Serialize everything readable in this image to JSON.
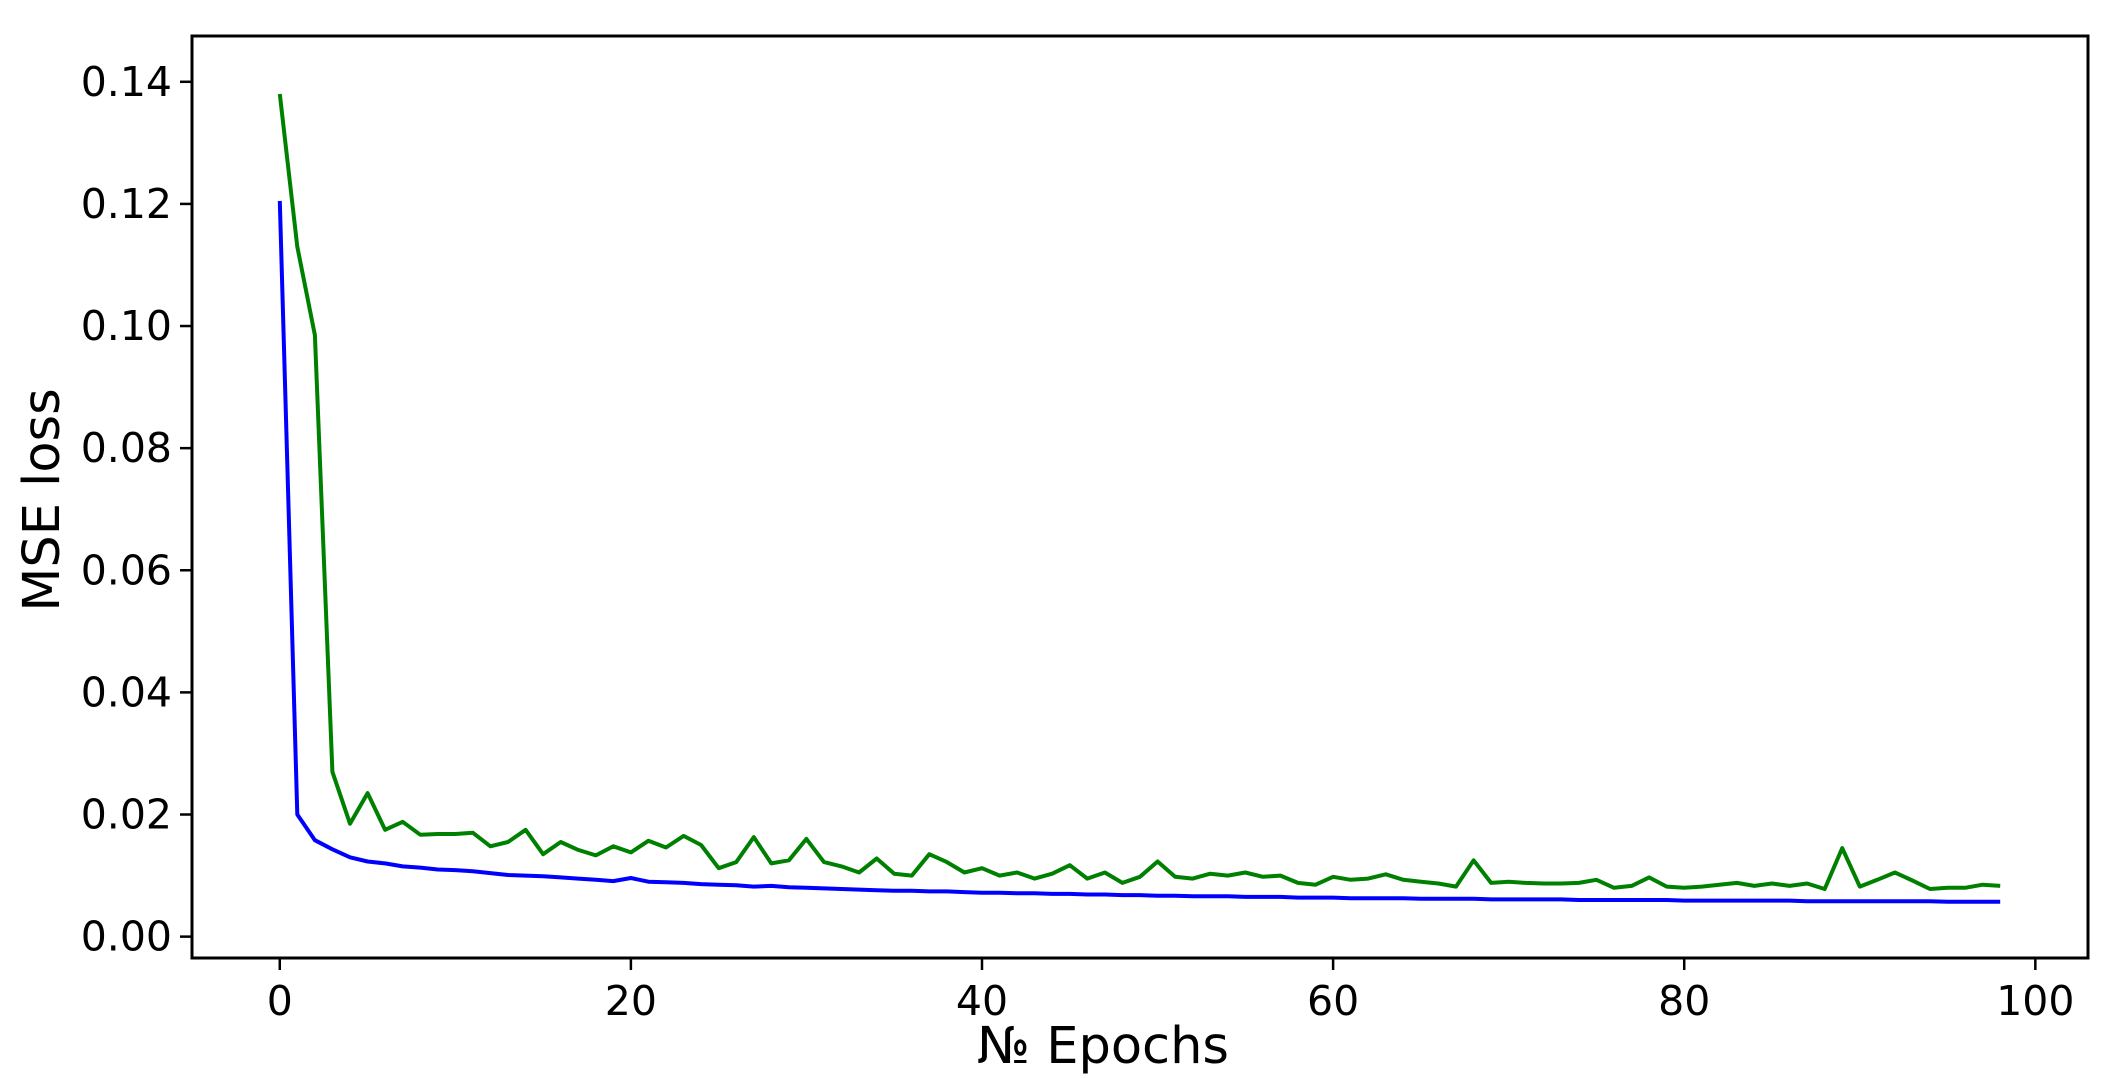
{
  "chart_data": {
    "type": "line",
    "title": "",
    "xlabel": "№ Epochs",
    "ylabel": "MSE loss",
    "xlim": [
      -5,
      103
    ],
    "ylim": [
      -0.0035,
      0.1475
    ],
    "xticks": [
      0,
      20,
      40,
      60,
      80,
      100
    ],
    "yticks": [
      0.0,
      0.02,
      0.04,
      0.06,
      0.08,
      0.1,
      0.12,
      0.14
    ],
    "xtick_labels": [
      "0",
      "20",
      "40",
      "60",
      "80",
      "100"
    ],
    "ytick_labels": [
      "0.00",
      "0.02",
      "0.04",
      "0.06",
      "0.08",
      "0.10",
      "0.12",
      "0.14"
    ],
    "grid": false,
    "legend": "none",
    "series": [
      {
        "color": "#0000ff",
        "x": [
          0,
          1,
          2,
          3,
          4,
          5,
          6,
          7,
          8,
          9,
          10,
          11,
          12,
          13,
          14,
          15,
          16,
          17,
          18,
          19,
          20,
          21,
          22,
          23,
          24,
          25,
          26,
          27,
          28,
          29,
          30,
          31,
          32,
          33,
          34,
          35,
          36,
          37,
          38,
          39,
          40,
          41,
          42,
          43,
          44,
          45,
          46,
          47,
          48,
          49,
          50,
          51,
          52,
          53,
          54,
          55,
          56,
          57,
          58,
          59,
          60,
          61,
          62,
          63,
          64,
          65,
          66,
          67,
          68,
          69,
          70,
          71,
          72,
          73,
          74,
          75,
          76,
          77,
          78,
          79,
          80,
          81,
          82,
          83,
          84,
          85,
          86,
          87,
          88,
          89,
          90,
          91,
          92,
          93,
          94,
          95,
          96,
          97,
          98
        ],
        "y": [
          0.1205,
          0.02,
          0.0158,
          0.0143,
          0.013,
          0.0123,
          0.012,
          0.0115,
          0.0113,
          0.011,
          0.0109,
          0.0107,
          0.0104,
          0.0101,
          0.01,
          0.0099,
          0.0097,
          0.0095,
          0.0093,
          0.0091,
          0.0096,
          0.009,
          0.0089,
          0.0088,
          0.0086,
          0.0085,
          0.0084,
          0.0082,
          0.0083,
          0.0081,
          0.008,
          0.0079,
          0.0078,
          0.0077,
          0.0076,
          0.0075,
          0.0075,
          0.0074,
          0.0074,
          0.0073,
          0.0072,
          0.0072,
          0.0071,
          0.0071,
          0.007,
          0.007,
          0.0069,
          0.0069,
          0.0068,
          0.0068,
          0.0067,
          0.0067,
          0.0066,
          0.0066,
          0.0066,
          0.0065,
          0.0065,
          0.0065,
          0.0064,
          0.0064,
          0.0064,
          0.0063,
          0.0063,
          0.0063,
          0.0063,
          0.0062,
          0.0062,
          0.0062,
          0.0062,
          0.0061,
          0.0061,
          0.0061,
          0.0061,
          0.0061,
          0.006,
          0.006,
          0.006,
          0.006,
          0.006,
          0.006,
          0.0059,
          0.0059,
          0.0059,
          0.0059,
          0.0059,
          0.0059,
          0.0059,
          0.0058,
          0.0058,
          0.0058,
          0.0058,
          0.0058,
          0.0058,
          0.0058,
          0.0058,
          0.0057,
          0.0057,
          0.0057,
          0.0057
        ]
      },
      {
        "color": "#008000",
        "x": [
          0,
          1,
          2,
          3,
          4,
          5,
          6,
          7,
          8,
          9,
          10,
          11,
          12,
          13,
          14,
          15,
          16,
          17,
          18,
          19,
          20,
          21,
          22,
          23,
          24,
          25,
          26,
          27,
          28,
          29,
          30,
          31,
          32,
          33,
          34,
          35,
          36,
          37,
          38,
          39,
          40,
          41,
          42,
          43,
          44,
          45,
          46,
          47,
          48,
          49,
          50,
          51,
          52,
          53,
          54,
          55,
          56,
          57,
          58,
          59,
          60,
          61,
          62,
          63,
          64,
          65,
          66,
          67,
          68,
          69,
          70,
          71,
          72,
          73,
          74,
          75,
          76,
          77,
          78,
          79,
          80,
          81,
          82,
          83,
          84,
          85,
          86,
          87,
          88,
          89,
          90,
          91,
          92,
          93,
          94,
          95,
          96,
          97,
          98
        ],
        "y": [
          0.138,
          0.113,
          0.0985,
          0.027,
          0.0185,
          0.0235,
          0.0175,
          0.0188,
          0.0167,
          0.0168,
          0.0168,
          0.017,
          0.0148,
          0.0155,
          0.0175,
          0.0135,
          0.0155,
          0.0142,
          0.0133,
          0.0148,
          0.0138,
          0.0157,
          0.0146,
          0.0165,
          0.015,
          0.0112,
          0.0122,
          0.0163,
          0.012,
          0.0125,
          0.016,
          0.0122,
          0.0115,
          0.0105,
          0.0128,
          0.0103,
          0.01,
          0.0135,
          0.0122,
          0.0105,
          0.0112,
          0.01,
          0.0105,
          0.0095,
          0.0103,
          0.0117,
          0.0095,
          0.0105,
          0.0088,
          0.0098,
          0.0123,
          0.0098,
          0.0095,
          0.0103,
          0.01,
          0.0105,
          0.0098,
          0.01,
          0.0088,
          0.0085,
          0.0098,
          0.0093,
          0.0095,
          0.0102,
          0.0093,
          0.009,
          0.0087,
          0.0082,
          0.0125,
          0.0088,
          0.009,
          0.0088,
          0.0087,
          0.0087,
          0.0088,
          0.0093,
          0.008,
          0.0083,
          0.0097,
          0.0082,
          0.008,
          0.0082,
          0.0085,
          0.0088,
          0.0083,
          0.0087,
          0.0083,
          0.0087,
          0.0078,
          0.0145,
          0.0082,
          0.0093,
          0.0105,
          0.0092,
          0.0078,
          0.008,
          0.008,
          0.0085,
          0.0083
        ]
      }
    ]
  }
}
